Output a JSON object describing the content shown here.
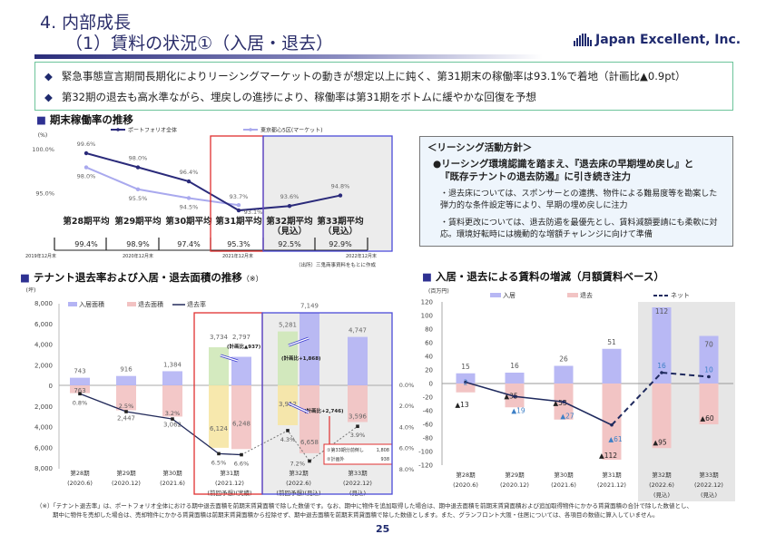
{
  "header": {
    "title": "4. 内部成長",
    "subtitle": "（1）賃料の状況①（入居・退去）",
    "logo_text": "Japan Excellent, Inc.",
    "logo_icon": "building-bars-icon"
  },
  "summary": {
    "bullets": [
      "緊急事態宣言期間長期化によりリーシングマーケットの動きが想定以上に鈍く、第31期末の稼働率は93.1%で着地（計画比▲0.9pt）",
      "第32期の退去も高水準ながら、埋戻しの進捗により、稼働率は第31期をボトムに緩やかな回復を予想"
    ],
    "bullet_icon": "◆"
  },
  "sections": {
    "occupancy": "期末稼働率の推移",
    "tenant": "テナント退去率および入居・退去面積の推移",
    "tenant_note": "（※）",
    "rent": "入居・退去による賃料の増減（月額賃料ベース）"
  },
  "policy": {
    "heading": "＜リーシング活動方針＞",
    "main1": "●リーシング環境認識を踏まえ、『退去床の早期埋め戻し』と",
    "main2": "『既存テナントの退去防遏』に引き続き注力",
    "sub1": "・退去床については、スポンサーとの連携、物件による難易度等を勘案した弾力的な条件設定等により、早期の埋め戻しに注力",
    "sub2": "・賃料更改については、退去防遏を最優先とし、賃料減額要請にも柔軟に対応。環境好転時には機動的な増額チャレンジに向けて準備"
  },
  "footnote": {
    "line1": "（※）「テナント退去率」は、ポートフォリオ全体における期中退去面積を前期末賃貸面積で除した数値です。なお、期中に物件を追加取得した場合は、期中退去面積を前期末賃貸面積および追加取得物件にかかる賃貸面積の合計で除した数値とし、",
    "line2": "期中に物件を売却した場合は、売却物件にかかる賃貸面積は前期末賃貸面積から控除せず、期中退去面積を前期末賃貸面積で除した数値とします。また、グランフロント大阪・住居については、各項目の数値に算入していません。"
  },
  "page_number": "25",
  "chart_data": [
    {
      "type": "line",
      "title": "期末稼働率の推移",
      "yunit": "(%)",
      "yticks": [
        "100.0%",
        "95.0%"
      ],
      "ytick_values": [
        100,
        95
      ],
      "series": [
        {
          "name": "ポートフォリオ全体",
          "color": "#2a2a7a",
          "values": [
            99.6,
            98.0,
            96.4,
            93.1,
            93.6,
            94.8
          ],
          "labels": [
            "99.6%",
            "98.0%",
            "96.4%",
            "93.1%",
            "93.6%",
            "94.8%"
          ]
        },
        {
          "name": "東京都心5区(マーケット)",
          "color": "#a9a9ee",
          "values": [
            98.0,
            95.5,
            94.5,
            93.7
          ],
          "labels": [
            "98.0%",
            "95.5%",
            "94.5%",
            "93.7%"
          ]
        }
      ],
      "period_averages": [
        {
          "label": "第28期平均",
          "sub": "",
          "value": "99.4%"
        },
        {
          "label": "第29期平均",
          "sub": "",
          "value": "98.9%"
        },
        {
          "label": "第30期平均",
          "sub": "",
          "value": "97.4%"
        },
        {
          "label": "第31期平均",
          "sub": "",
          "value": "95.3%"
        },
        {
          "label": "第32期平均",
          "sub": "（見込）",
          "value": "92.5%"
        },
        {
          "label": "第33期平均",
          "sub": "（見込）",
          "value": "92.9%"
        }
      ],
      "x_dates": [
        "2019年12月末",
        "2020年12月末",
        "2021年12月末",
        "2022年12月末"
      ],
      "source": "（出所）三鬼商事資料をもとに作成",
      "highlight_actual": "#e03030",
      "highlight_forecast": "#4b4bd8"
    },
    {
      "type": "bar",
      "title": "テナント退去率および入居・退去面積の推移",
      "yunit": "(坪)",
      "yticks": [
        "8,000",
        "6,000",
        "4,000",
        "2,000",
        "0",
        "2,000",
        "4,000",
        "6,000",
        "8,000"
      ],
      "y2ticks": [
        "0.0%",
        "2.0%",
        "4.0%",
        "6.0%",
        "8.0%"
      ],
      "legend": [
        "入居面積",
        "退去面積",
        "退去率"
      ],
      "categories": [
        {
          "label": "第28期",
          "sub": "(2020.6)",
          "note": ""
        },
        {
          "label": "第29期",
          "sub": "(2020.12)",
          "note": ""
        },
        {
          "label": "第30期",
          "sub": "(2021.6)",
          "note": ""
        },
        {
          "label": "第31期",
          "sub": "(2021.12)",
          "note": "(前回予想)(実績)"
        },
        {
          "label": "第32期",
          "sub": "(2022.6)",
          "note": "(前回予想)(見込)"
        },
        {
          "label": "第33期",
          "sub": "(2022.12)",
          "note": "(見込)"
        }
      ],
      "move_in": [
        743,
        916,
        1384,
        2797,
        7149,
        4747
      ],
      "move_out": [
        763,
        2447,
        3062,
        6248,
        6658,
        3596
      ],
      "plan_move_in": [
        null,
        null,
        null,
        3734,
        5281,
        null
      ],
      "plan_move_out": [
        null,
        null,
        null,
        6124,
        3912,
        null
      ],
      "rate": [
        0.8,
        2.5,
        3.2,
        6.6,
        7.2,
        3.9
      ],
      "plan_rate": [
        null,
        null,
        null,
        6.5,
        4.3,
        null
      ],
      "annotations": [
        "(計画比▲937)",
        "(計画比+1,868)",
        "(計画比+2,746)"
      ],
      "callout": {
        "line1": "①第33期分前倒し",
        "value1": "1,808",
        "line2": "②計画外",
        "value2": "938"
      },
      "colors": {
        "move_in": "#b4b4f4",
        "move_out": "#f2c2c2",
        "plan_in": "#cfe8b8",
        "plan_out": "#f6e6a4",
        "rate": "#222a5a"
      }
    },
    {
      "type": "bar",
      "title": "入居・退去による賃料の増減（月額賃料ベース）",
      "yunit": "(百万円)",
      "ylim": [
        -120,
        120
      ],
      "yticks": [
        120,
        100,
        80,
        60,
        40,
        20,
        0,
        -20,
        -40,
        -60,
        -80,
        -100,
        -120
      ],
      "legend": [
        "入居",
        "退去",
        "ネット"
      ],
      "categories": [
        {
          "label": "第28期",
          "sub": "(2020.6)",
          "note": ""
        },
        {
          "label": "第29期",
          "sub": "(2020.12)",
          "note": ""
        },
        {
          "label": "第30期",
          "sub": "(2021.6)",
          "note": ""
        },
        {
          "label": "第31期",
          "sub": "(2021.12)",
          "note": ""
        },
        {
          "label": "第32期",
          "sub": "(2022.6)",
          "note": "(見込)"
        },
        {
          "label": "第33期",
          "sub": "(2022.12)",
          "note": "(見込)"
        }
      ],
      "move_in": [
        15,
        16,
        26,
        51,
        112,
        70
      ],
      "move_out": [
        -13,
        -35,
        -53,
        -112,
        -95,
        -60
      ],
      "net": [
        2,
        -19,
        -27,
        -61,
        16,
        10
      ],
      "colors": {
        "move_in": "#b8b8f4",
        "move_out": "#f2c4c4",
        "net": "#1f2a5e",
        "net_label": "#3d7fc6"
      }
    }
  ]
}
